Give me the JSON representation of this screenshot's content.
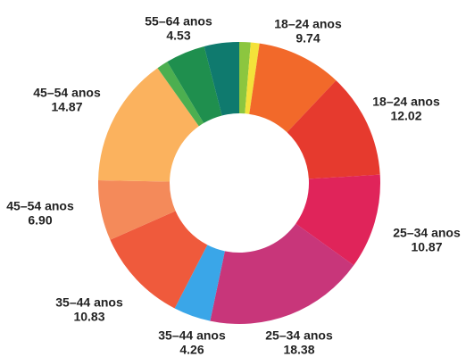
{
  "chart_data": {
    "type": "donut",
    "categories": [
      null,
      null,
      "18–24 anos",
      "18–24 anos",
      "25–34 anos",
      "25–34 anos",
      "35–44 anos",
      "35–44 anos",
      "45–54 anos",
      "45–54 anos",
      null,
      "55–64 anos",
      null
    ],
    "values": [
      1.3,
      1.0,
      9.74,
      12.02,
      10.87,
      18.38,
      4.26,
      10.83,
      6.9,
      14.87,
      1.3,
      4.53,
      4.0
    ],
    "value_labels": [
      null,
      null,
      "9.74",
      "12.02",
      "10.87",
      "18.38",
      "4.26",
      "10.83",
      "6.90",
      "14.87",
      null,
      "4.53",
      null
    ],
    "colors": [
      "#8cc63f",
      "#f4e23a",
      "#f2692a",
      "#e63a2e",
      "#e0245a",
      "#c8367a",
      "#3aa6e8",
      "#ef5a3c",
      "#f48a5a",
      "#fbb25e",
      "#4caf50",
      "#1f8f4e",
      "#0f7a6e"
    ]
  }
}
